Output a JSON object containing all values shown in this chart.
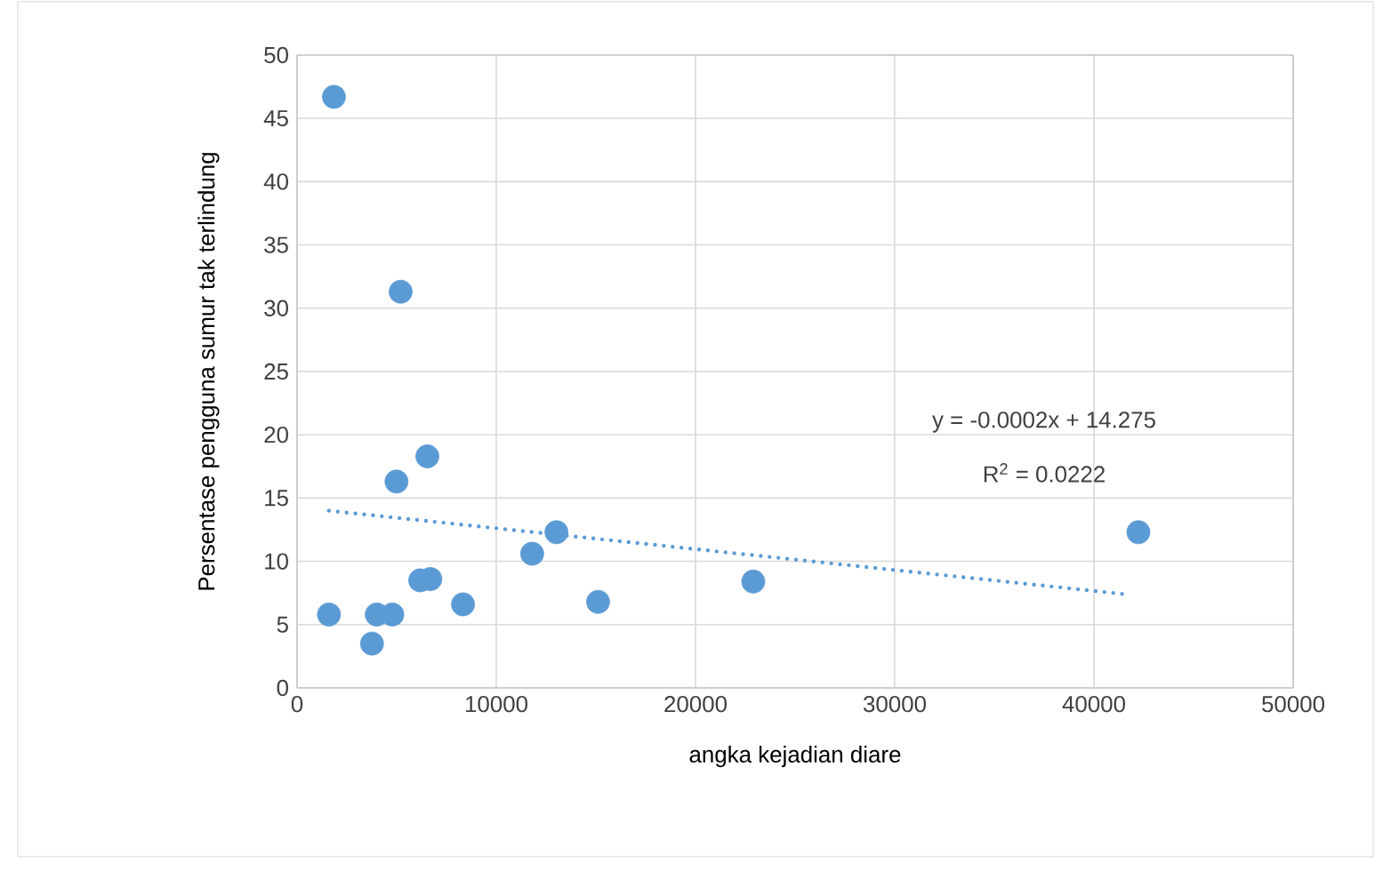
{
  "chart_data": {
    "type": "scatter",
    "xlabel": "angka kejadian diare",
    "ylabel": "Persentase pengguna sumur tak  terlindung",
    "xlim": [
      0,
      50000
    ],
    "xticks": [
      0,
      10000,
      20000,
      30000,
      40000,
      50000
    ],
    "ylim": [
      0,
      50
    ],
    "yticks": [
      0,
      5,
      10,
      15,
      20,
      25,
      30,
      35,
      40,
      45,
      50
    ],
    "grid": true,
    "series": [
      {
        "color": "#5b9bd5",
        "marker": "circle",
        "x": [
          1850,
          1600,
          3760,
          4000,
          4780,
          5200,
          4990,
          6180,
          6540,
          6690,
          8330,
          11800,
          13020,
          15110,
          22900,
          42230
        ],
        "values": [
          46.7,
          5.8,
          3.5,
          5.8,
          5.8,
          31.3,
          16.3,
          8.5,
          18.3,
          8.6,
          6.6,
          10.6,
          12.3,
          6.8,
          8.4,
          12.3
        ]
      },
      {
        "type": "line",
        "color": "#5b9bd5",
        "marker": "none",
        "line_style": "dotted",
        "x": [
          1600,
          41600
        ],
        "values": [
          14.0,
          7.4
        ]
      }
    ],
    "annotations": [
      "y = -0.0002x + 14.275",
      "R$^{2}$ = 0.0222"
    ]
  }
}
